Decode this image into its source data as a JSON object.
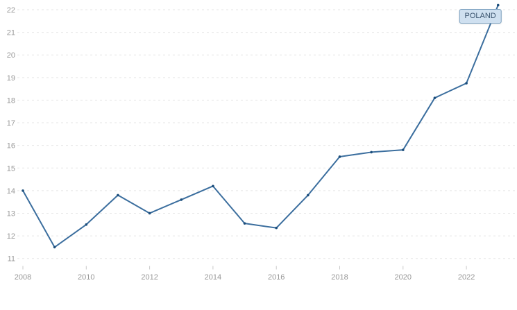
{
  "chart": {
    "series_label": "POLAND",
    "colors": {
      "line": "#3b6e9e",
      "marker": "#1c4e7c",
      "grid": "#e5e5e5",
      "axis_text": "#979797",
      "tick": "#c9c9c9",
      "tooltip_bg": "#cfe0f0",
      "tooltip_border": "#7ba0bf",
      "tooltip_text": "#3a536e",
      "background": "#ffffff"
    }
  },
  "chart_data": {
    "type": "line",
    "title": "",
    "xlabel": "",
    "ylabel": "",
    "x": [
      2008,
      2009,
      2010,
      2011,
      2012,
      2013,
      2014,
      2015,
      2016,
      2017,
      2018,
      2019,
      2020,
      2021,
      2022,
      2023
    ],
    "series": [
      {
        "name": "POLAND",
        "values": [
          14.0,
          11.5,
          12.5,
          13.8,
          13.0,
          13.6,
          14.2,
          12.55,
          12.35,
          13.8,
          15.5,
          15.7,
          15.8,
          18.1,
          18.75,
          22.2
        ]
      }
    ],
    "y_ticks": [
      11,
      12,
      13,
      14,
      15,
      16,
      17,
      18,
      19,
      20,
      21,
      22
    ],
    "x_tick_labels": [
      "2008",
      "2010",
      "2012",
      "2014",
      "2016",
      "2018",
      "2020",
      "2022"
    ],
    "ylim": [
      10.8,
      22.45
    ],
    "xlim": [
      2008,
      2023
    ],
    "grid": "horizontal-dashed",
    "legend_position": "tooltip-at-last-point",
    "markers": "dot"
  }
}
